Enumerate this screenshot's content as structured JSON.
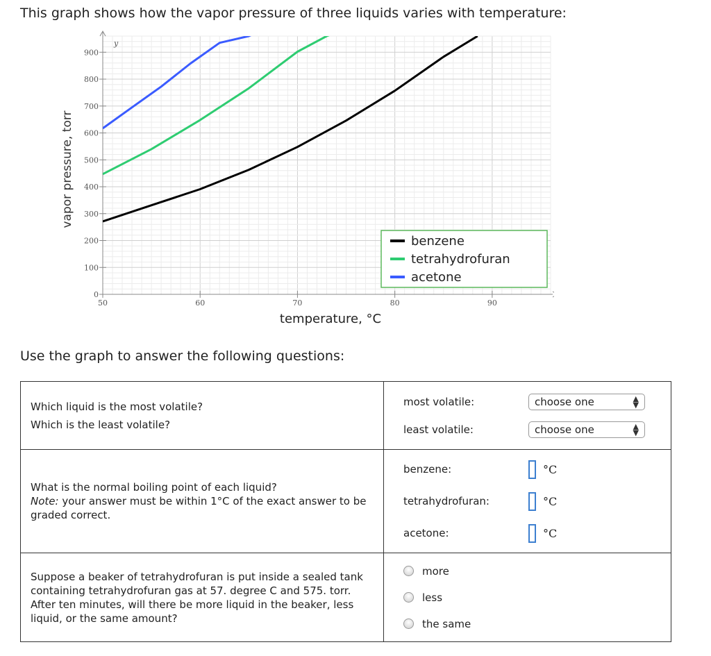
{
  "intro": "This graph shows how the vapor pressure of three liquids varies with temperature:",
  "subhead": "Use the graph to answer the following questions:",
  "chart_data": {
    "type": "line",
    "xlabel": "temperature, °C",
    "ylabel": "vapor pressure, torr",
    "y_axis_letter": "y",
    "xlim": [
      50,
      96
    ],
    "ylim": [
      0,
      960
    ],
    "xticks": [
      50,
      60,
      70,
      80,
      90
    ],
    "yticks": [
      0,
      100,
      200,
      300,
      400,
      500,
      600,
      700,
      800,
      900
    ],
    "grid": true,
    "legend_position": "bottom-right",
    "series": [
      {
        "name": "benzene",
        "color": "#000000",
        "x": [
          50,
          55,
          60,
          65,
          70,
          75,
          80,
          85,
          88.5
        ],
        "y": [
          271,
          331,
          391,
          463,
          548,
          646,
          757,
          883,
          960
        ]
      },
      {
        "name": "tetrahydrofuran",
        "color": "#2ecc71",
        "x": [
          50,
          55,
          60,
          65,
          70,
          73,
          76,
          79,
          81.5
        ],
        "y": [
          447,
          540,
          648,
          766,
          902,
          960,
          1000,
          1000,
          1000
        ]
      },
      {
        "name": "acetone",
        "color": "#3a5bff",
        "x": [
          50,
          53,
          56,
          59,
          62,
          65,
          67.5
        ],
        "y": [
          617,
          695,
          772,
          858,
          935,
          960,
          1000
        ]
      }
    ]
  },
  "questions": {
    "q1": {
      "lines": [
        "Which liquid is the most volatile?",
        "Which is the least volatile?"
      ],
      "most_label": "most volatile:",
      "least_label": "least volatile:",
      "select_value": "choose one"
    },
    "q2": {
      "line1": "What is the normal boiling point of each liquid?",
      "note_label": "Note:",
      "note_text": " your answer must be within 1°C of the exact answer to be graded correct.",
      "liquids": [
        "benzene:",
        "tetrahydrofuran:",
        "acetone:"
      ],
      "unit": "°C"
    },
    "q3": {
      "text": "Suppose a beaker of tetrahydrofuran is put inside a sealed tank containing tetrahydrofuran gas at 57. degree C and 575. torr. After ten minutes, will there be more liquid in the beaker, less liquid, or the same amount?",
      "options": [
        "more",
        "less",
        "the same"
      ]
    }
  }
}
